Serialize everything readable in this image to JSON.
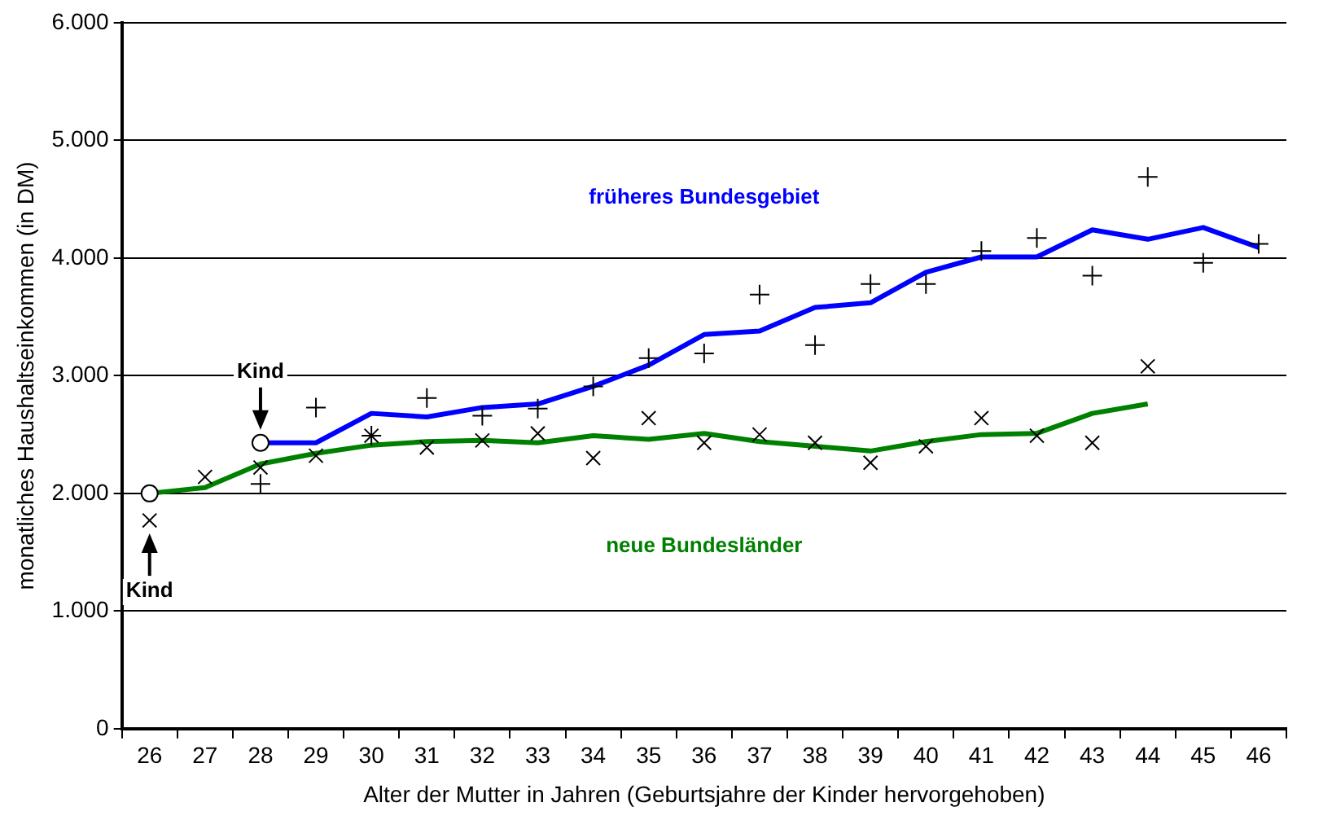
{
  "chart_data": {
    "type": "line",
    "xlabel": "Alter der Mutter in Jahren (Geburtsjahre der Kinder hervorgehoben)",
    "ylabel": "monatliches Haushaltseinkommen (in DM)",
    "categories": [
      "26",
      "27",
      "28",
      "29",
      "30",
      "31",
      "32",
      "33",
      "34",
      "35",
      "36",
      "37",
      "38",
      "39",
      "40",
      "41",
      "42",
      "43",
      "44",
      "45",
      "46"
    ],
    "series": [
      {
        "name": "früheres Bundesgebiet",
        "type": "line",
        "color": "#0000ff",
        "marker": "none",
        "values": [
          null,
          null,
          2430,
          2430,
          2680,
          2650,
          2730,
          2760,
          2910,
          3090,
          3350,
          3380,
          3580,
          3620,
          3880,
          4010,
          4010,
          4240,
          4160,
          4260,
          4090
        ]
      },
      {
        "type": "scatter",
        "color": "#000000",
        "marker": "cross",
        "values": [
          null,
          null,
          2080,
          2730,
          2490,
          2810,
          2660,
          2720,
          2910,
          3150,
          3190,
          3690,
          3260,
          3780,
          3780,
          4060,
          4170,
          3850,
          4690,
          3960,
          4120
        ]
      },
      {
        "name": "neue Bundesländer",
        "type": "line",
        "color": "#008000",
        "marker": "none",
        "values": [
          2000,
          2050,
          2250,
          2340,
          2410,
          2440,
          2450,
          2430,
          2490,
          2460,
          2510,
          2440,
          2400,
          2360,
          2440,
          2500,
          2510,
          2680,
          2760,
          null,
          null
        ]
      },
      {
        "type": "scatter",
        "color": "#000000",
        "marker": "x",
        "values": [
          1770,
          2140,
          2220,
          2320,
          2490,
          2390,
          2450,
          2510,
          2300,
          2640,
          2430,
          2500,
          2430,
          2260,
          2400,
          2640,
          2490,
          2430,
          3080,
          null,
          null
        ]
      },
      {
        "type": "scatter",
        "color": "#ffffff",
        "marker": "circle",
        "values": [
          2000,
          null,
          2430,
          null,
          null,
          null,
          null,
          null,
          null,
          null,
          null,
          null,
          null,
          null,
          null,
          null,
          null,
          null,
          null,
          null,
          null
        ]
      }
    ],
    "ylim": [
      0,
      6000
    ],
    "yticks": [
      {
        "value": 0,
        "label": "0"
      },
      {
        "value": 1000,
        "label": "1.000"
      },
      {
        "value": 2000,
        "label": "2.000"
      },
      {
        "value": 3000,
        "label": "3.000"
      },
      {
        "value": 4000,
        "label": "4.000"
      },
      {
        "value": 5000,
        "label": "5.000"
      },
      {
        "value": 6000,
        "label": "6.000"
      }
    ],
    "grid": "y",
    "legend": false,
    "annotations": [
      {
        "text": "Kind",
        "x": "26",
        "y": 1770
      },
      {
        "text": "Kind",
        "x": "28",
        "y": 2430
      }
    ]
  }
}
